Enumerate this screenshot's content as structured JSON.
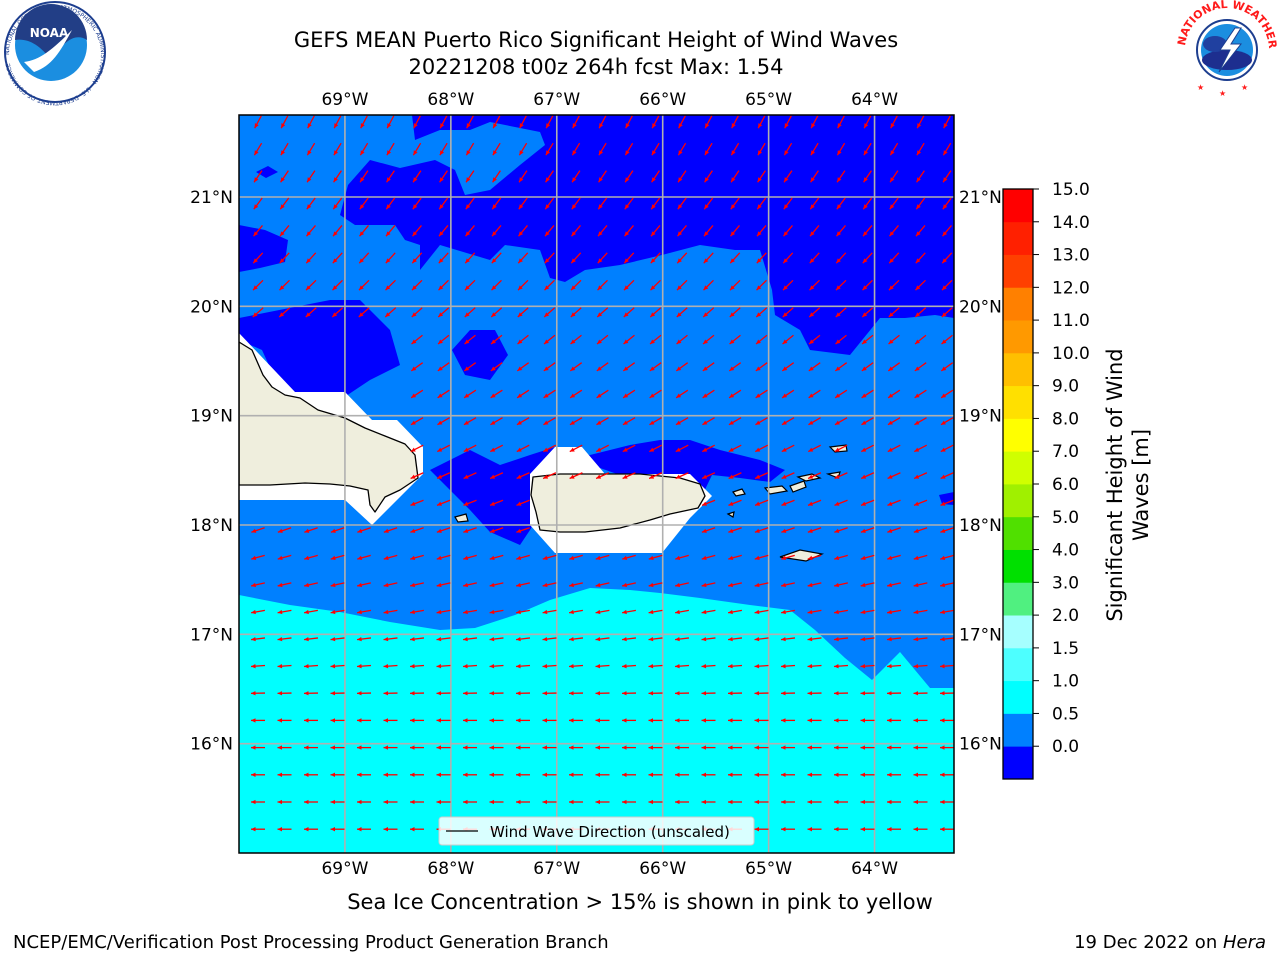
{
  "header": {
    "title_line1": "GEFS MEAN Puerto Rico Significant Height of Wind Waves",
    "title_line2": "20221208 t00z 264h fcst   Max: 1.54"
  },
  "axes": {
    "lon_ticks": [
      "69°W",
      "68°W",
      "67°W",
      "66°W",
      "65°W",
      "64°W"
    ],
    "lat_ticks": [
      "21°N",
      "20°N",
      "19°N",
      "18°N",
      "17°N",
      "16°N"
    ],
    "lon_values": [
      -69,
      -68,
      -67,
      -66,
      -65,
      -64
    ],
    "lat_values": [
      21,
      20,
      19,
      18,
      17,
      16
    ],
    "lon_range": [
      -70,
      -63.25
    ],
    "lat_range": [
      15,
      21.75
    ],
    "grid": true
  },
  "legend": {
    "label": "Wind Wave Direction (unscaled)",
    "placement": "bottom-center"
  },
  "colorbar": {
    "label_line1": "Significant Height of Wind",
    "label_line2": "Waves [m]",
    "ticks": [
      "15.0",
      "14.0",
      "13.0",
      "12.0",
      "11.0",
      "10.0",
      "9.0",
      "8.0",
      "7.0",
      "6.0",
      "5.0",
      "4.0",
      "3.0",
      "2.0",
      "1.5",
      "1.0",
      "0.5",
      "0.0"
    ],
    "levels": [
      0.0,
      0.5,
      1.0,
      1.5,
      2.0,
      3.0,
      4.0,
      5.0,
      6.0,
      7.0,
      8.0,
      9.0,
      10.0,
      11.0,
      12.0,
      13.0,
      14.0,
      15.0
    ],
    "colors": [
      "#0000ff",
      "#0080ff",
      "#00ffff",
      "#4dffff",
      "#a6ffff",
      "#50f080",
      "#00e000",
      "#50e000",
      "#a0f000",
      "#d0ff00",
      "#ffff00",
      "#ffe000",
      "#ffbf00",
      "#ff9900",
      "#ff8000",
      "#ff4000",
      "#ff2000",
      "#ff0000"
    ]
  },
  "colors": {
    "land": "#efeedd",
    "arrow": "#ff0000",
    "grid": "#b0b0b0"
  },
  "subtitle": "Sea Ice Concentration > 15% is shown in pink to yellow",
  "footer": {
    "left": "NCEP/EMC/Verification Post Processing Product Generation Branch",
    "right_prefix": "19 Dec 2022 on ",
    "right_host": "Hera"
  },
  "logos": {
    "noaa_text": "NOAA",
    "noaa_ring": "NATIONAL OCEANIC AND ATMOSPHERIC ADMINISTRATION · U.S. DEPARTMENT OF COMMERCE",
    "nws_ring": "NATIONAL WEATHER SERVICE"
  }
}
